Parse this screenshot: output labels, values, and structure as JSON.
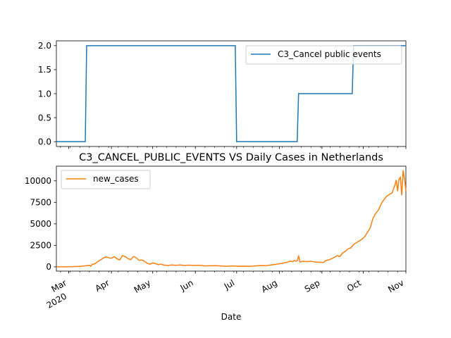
{
  "chart_data": [
    {
      "type": "line",
      "title": "",
      "xlabel": "",
      "ylabel": "",
      "x_range": [
        "2020-02-21",
        "2020-11-01"
      ],
      "ylim": [
        -0.1,
        2.1
      ],
      "yticks": [
        "0.0",
        "0.5",
        "1.0",
        "1.5",
        "2.0"
      ],
      "grid": false,
      "legend": "top-right",
      "series": [
        {
          "name": "C3_Cancel public events",
          "color": "#1f77b4",
          "step_points": [
            [
              "2020-02-21",
              0
            ],
            [
              "2020-03-13",
              0
            ],
            [
              "2020-03-14",
              2
            ],
            [
              "2020-06-30",
              2
            ],
            [
              "2020-07-01",
              0
            ],
            [
              "2020-08-14",
              0
            ],
            [
              "2020-08-15",
              1
            ],
            [
              "2020-09-23",
              1
            ],
            [
              "2020-09-24",
              2
            ],
            [
              "2020-11-01",
              2
            ]
          ]
        }
      ]
    },
    {
      "type": "line",
      "title": "C3_CANCEL_PUBLIC_EVENTS VS Daily Cases in Netherlands",
      "xlabel": "Date",
      "ylabel": "",
      "x_range": [
        "2020-02-21",
        "2020-11-01"
      ],
      "ylim": [
        -500,
        11700
      ],
      "yticks": [
        "0",
        "2500",
        "5000",
        "7500",
        "10000"
      ],
      "xticks": [
        {
          "major": "Mar",
          "minor": "2020",
          "date": "2020-03-01"
        },
        {
          "major": "Apr",
          "minor": "",
          "date": "2020-04-01"
        },
        {
          "major": "May",
          "minor": "",
          "date": "2020-05-01"
        },
        {
          "major": "Jun",
          "minor": "",
          "date": "2020-06-01"
        },
        {
          "major": "Jul",
          "minor": "",
          "date": "2020-07-01"
        },
        {
          "major": "Aug",
          "minor": "",
          "date": "2020-08-01"
        },
        {
          "major": "Sep",
          "minor": "",
          "date": "2020-09-01"
        },
        {
          "major": "Oct",
          "minor": "",
          "date": "2020-10-01"
        },
        {
          "major": "Nov",
          "minor": "",
          "date": "2020-11-01"
        }
      ],
      "grid": false,
      "legend": "top-left",
      "series": [
        {
          "name": "new_cases",
          "color": "#ff7f0e",
          "points": [
            [
              "2020-02-21",
              0
            ],
            [
              "2020-02-27",
              1
            ],
            [
              "2020-03-03",
              10
            ],
            [
              "2020-03-07",
              40
            ],
            [
              "2020-03-10",
              60
            ],
            [
              "2020-03-13",
              110
            ],
            [
              "2020-03-16",
              180
            ],
            [
              "2020-03-17",
              60
            ],
            [
              "2020-03-18",
              290
            ],
            [
              "2020-03-20",
              350
            ],
            [
              "2020-03-22",
              600
            ],
            [
              "2020-03-24",
              800
            ],
            [
              "2020-03-26",
              1000
            ],
            [
              "2020-03-28",
              1170
            ],
            [
              "2020-03-30",
              1050
            ],
            [
              "2020-04-01",
              1000
            ],
            [
              "2020-04-03",
              1180
            ],
            [
              "2020-04-05",
              950
            ],
            [
              "2020-04-07",
              800
            ],
            [
              "2020-04-09",
              1300
            ],
            [
              "2020-04-11",
              1200
            ],
            [
              "2020-04-13",
              970
            ],
            [
              "2020-04-15",
              820
            ],
            [
              "2020-04-17",
              1200
            ],
            [
              "2020-04-19",
              1060
            ],
            [
              "2020-04-21",
              750
            ],
            [
              "2020-04-23",
              800
            ],
            [
              "2020-04-25",
              650
            ],
            [
              "2020-04-27",
              400
            ],
            [
              "2020-04-29",
              300
            ],
            [
              "2020-05-01",
              450
            ],
            [
              "2020-05-03",
              360
            ],
            [
              "2020-05-05",
              250
            ],
            [
              "2020-05-07",
              320
            ],
            [
              "2020-05-09",
              210
            ],
            [
              "2020-05-12",
              150
            ],
            [
              "2020-05-15",
              220
            ],
            [
              "2020-05-18",
              170
            ],
            [
              "2020-05-21",
              220
            ],
            [
              "2020-05-24",
              150
            ],
            [
              "2020-05-27",
              200
            ],
            [
              "2020-05-31",
              160
            ],
            [
              "2020-06-04",
              190
            ],
            [
              "2020-06-08",
              100
            ],
            [
              "2020-06-12",
              120
            ],
            [
              "2020-06-16",
              130
            ],
            [
              "2020-06-20",
              90
            ],
            [
              "2020-06-24",
              60
            ],
            [
              "2020-06-28",
              100
            ],
            [
              "2020-07-02",
              60
            ],
            [
              "2020-07-06",
              70
            ],
            [
              "2020-07-10",
              50
            ],
            [
              "2020-07-14",
              90
            ],
            [
              "2020-07-18",
              140
            ],
            [
              "2020-07-22",
              130
            ],
            [
              "2020-07-26",
              220
            ],
            [
              "2020-07-30",
              300
            ],
            [
              "2020-08-03",
              400
            ],
            [
              "2020-08-06",
              500
            ],
            [
              "2020-08-09",
              650
            ],
            [
              "2020-08-11",
              600
            ],
            [
              "2020-08-12",
              750
            ],
            [
              "2020-08-13",
              650
            ],
            [
              "2020-08-14",
              700
            ],
            [
              "2020-08-15",
              1300
            ],
            [
              "2020-08-16",
              550
            ],
            [
              "2020-08-18",
              650
            ],
            [
              "2020-08-21",
              600
            ],
            [
              "2020-08-24",
              650
            ],
            [
              "2020-08-27",
              550
            ],
            [
              "2020-08-30",
              530
            ],
            [
              "2020-09-02",
              500
            ],
            [
              "2020-09-04",
              750
            ],
            [
              "2020-09-06",
              800
            ],
            [
              "2020-09-08",
              950
            ],
            [
              "2020-09-10",
              1100
            ],
            [
              "2020-09-12",
              1300
            ],
            [
              "2020-09-14",
              1200
            ],
            [
              "2020-09-16",
              1600
            ],
            [
              "2020-09-18",
              1800
            ],
            [
              "2020-09-20",
              2100
            ],
            [
              "2020-09-22",
              2200
            ],
            [
              "2020-09-24",
              2600
            ],
            [
              "2020-09-26",
              2800
            ],
            [
              "2020-09-28",
              3000
            ],
            [
              "2020-09-30",
              3200
            ],
            [
              "2020-10-02",
              3500
            ],
            [
              "2020-10-04",
              4000
            ],
            [
              "2020-10-06",
              4500
            ],
            [
              "2020-10-08",
              5600
            ],
            [
              "2020-10-10",
              6200
            ],
            [
              "2020-10-12",
              6600
            ],
            [
              "2020-10-14",
              7300
            ],
            [
              "2020-10-16",
              7800
            ],
            [
              "2020-10-18",
              8200
            ],
            [
              "2020-10-20",
              8400
            ],
            [
              "2020-10-22",
              8600
            ],
            [
              "2020-10-24",
              9500
            ],
            [
              "2020-10-25",
              10100
            ],
            [
              "2020-10-26",
              8800
            ],
            [
              "2020-10-27",
              10200
            ],
            [
              "2020-10-28",
              10400
            ],
            [
              "2020-10-29",
              8300
            ],
            [
              "2020-10-30",
              11200
            ],
            [
              "2020-10-31",
              10200
            ],
            [
              "2020-11-01",
              8800
            ]
          ]
        }
      ]
    }
  ]
}
